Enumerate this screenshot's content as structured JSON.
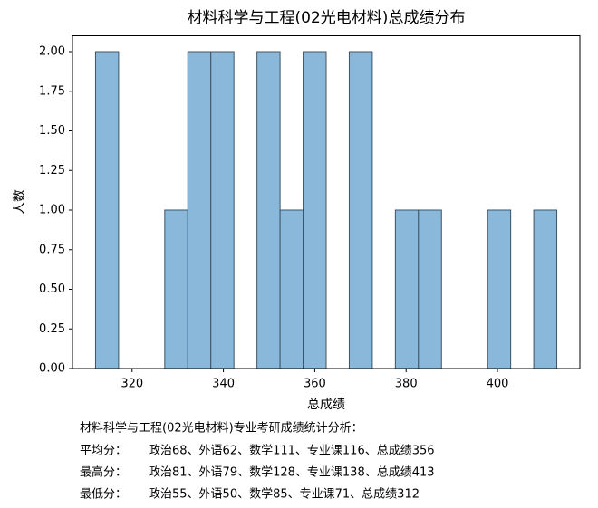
{
  "chart_data": {
    "type": "histogram",
    "title": "材料科学与工程(02光电材料)总成绩分布",
    "xlabel": "总成绩",
    "ylabel": "人数",
    "bins": [
      312,
      317.05,
      322.1,
      327.15,
      332.2,
      337.25,
      342.3,
      347.35,
      352.4,
      357.45,
      362.5,
      367.55,
      372.6,
      377.65,
      382.7,
      387.75,
      392.8,
      397.85,
      402.9,
      407.95,
      413
    ],
    "counts": [
      2,
      0,
      0,
      1,
      2,
      2,
      0,
      2,
      1,
      2,
      0,
      2,
      0,
      1,
      1,
      0,
      0,
      1,
      0,
      1
    ],
    "color": "#8ab8da",
    "edgecolor": "#3d5366",
    "xlim": [
      306.95,
      418.05
    ],
    "xticks": [
      320,
      340,
      360,
      380,
      400
    ],
    "ylim": [
      0,
      2.1
    ],
    "yticks": [
      {
        "value": 0,
        "label": "0.00"
      },
      {
        "value": 0.25,
        "label": "0.25"
      },
      {
        "value": 0.5,
        "label": "0.50"
      },
      {
        "value": 0.75,
        "label": "0.75"
      },
      {
        "value": 1,
        "label": "1.00"
      },
      {
        "value": 1.25,
        "label": "1.25"
      },
      {
        "value": 1.5,
        "label": "1.50"
      },
      {
        "value": 1.75,
        "label": "1.75"
      },
      {
        "value": 2,
        "label": "2.00"
      }
    ]
  },
  "summary": {
    "heading": "材料科学与工程(02光电材料)专业考研成绩统计分析：",
    "rows": [
      {
        "label": "平均分：",
        "text": "政治68、外语62、数学111、专业课116、总成绩356"
      },
      {
        "label": "最高分：",
        "text": "政治81、外语79、数学128、专业课138、总成绩413"
      },
      {
        "label": "最低分：",
        "text": "政治55、外语50、数学85、专业课71、总成绩312"
      }
    ]
  }
}
